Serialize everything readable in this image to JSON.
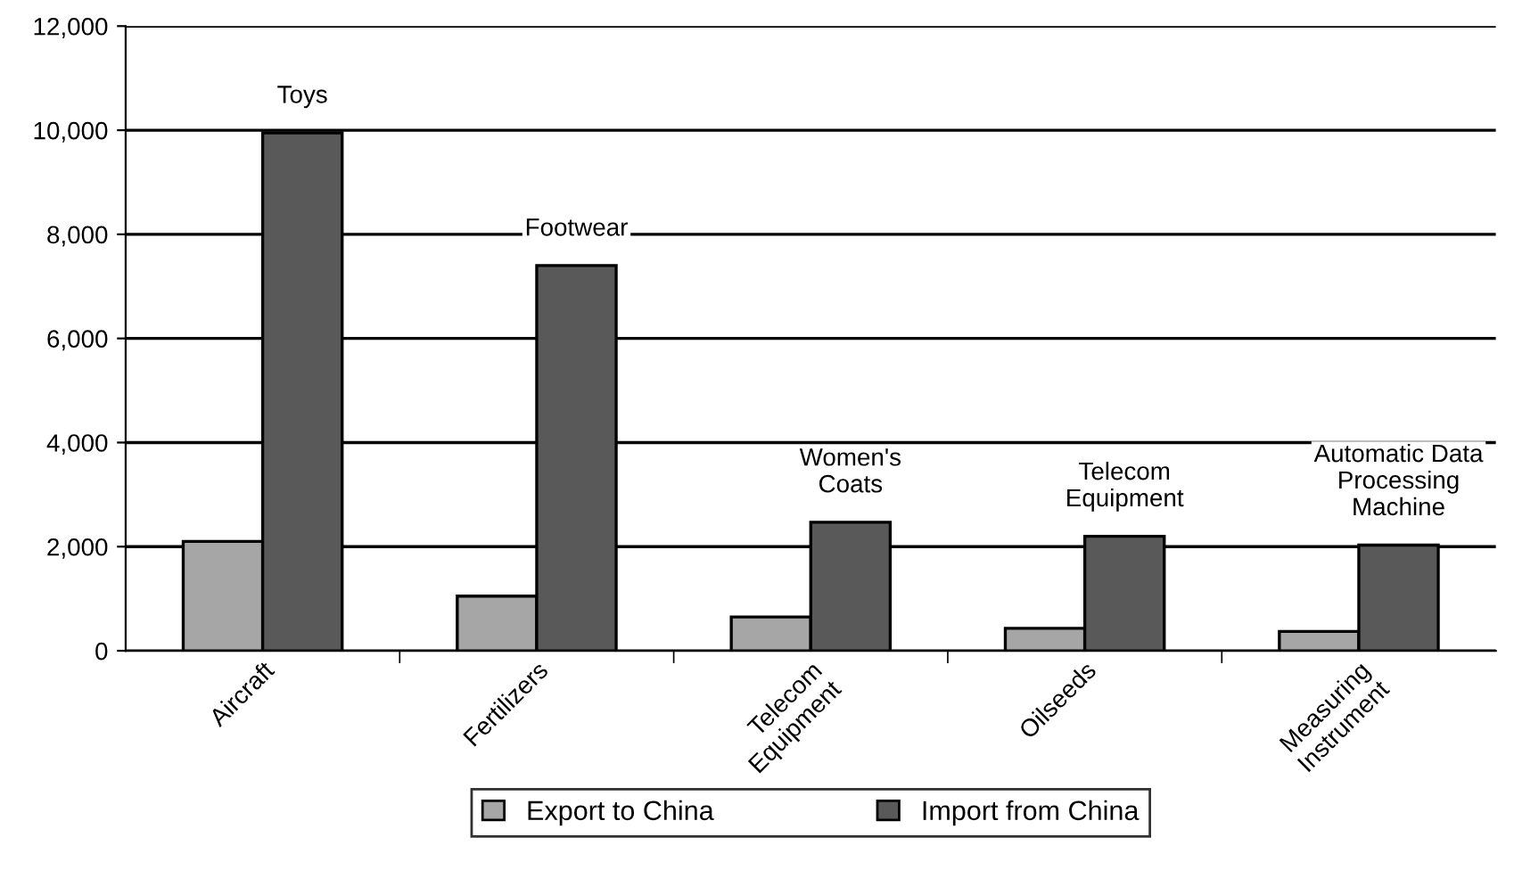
{
  "chart_data": {
    "type": "bar",
    "categories": [
      "Aircraft",
      "Fertilizers",
      "Telecom\nEquipment",
      "Oilseeds",
      "Measuring\nInstrument"
    ],
    "series": [
      {
        "name": "Export to China",
        "color": "#a6a6a6",
        "values": [
          2100,
          1050,
          650,
          430,
          370
        ]
      },
      {
        "name": "Import from China",
        "color": "#595959",
        "values": [
          9950,
          7400,
          2470,
          2200,
          2030
        ]
      }
    ],
    "annotations": [
      {
        "text": "Toys",
        "x": "Aircraft",
        "y": 9950
      },
      {
        "text": "Footwear",
        "x": "Fertilizers",
        "y": 7400
      },
      {
        "text": "Women's\nCoats",
        "x": "Telecom\nEquipment",
        "y": 2470
      },
      {
        "text": "Telecom\nEquipment",
        "x": "Oilseeds",
        "y": 2200
      },
      {
        "text": "Automatic Data\nProcessing\nMachine",
        "x": "Measuring\nInstrument",
        "y": 2030
      }
    ],
    "ylim": [
      0,
      12000
    ],
    "yticks": [
      {
        "value": 0,
        "label": "0"
      },
      {
        "value": 2000,
        "label": "2,000"
      },
      {
        "value": 4000,
        "label": "4,000"
      },
      {
        "value": 6000,
        "label": "6,000"
      },
      {
        "value": 8000,
        "label": "8,000"
      },
      {
        "value": 10000,
        "label": "10,000"
      },
      {
        "value": 12000,
        "label": "12,000"
      }
    ],
    "grid": "y",
    "legend": "bottom"
  }
}
